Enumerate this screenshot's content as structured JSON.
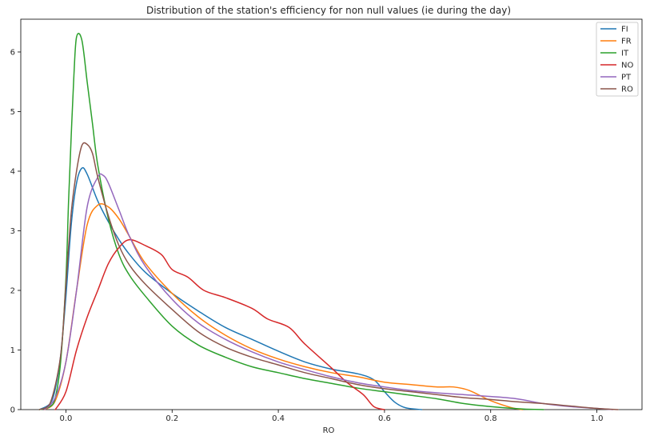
{
  "chart_data": {
    "type": "line",
    "title": "Distribution of the station's efficiency for non null values (ie during the day)",
    "xlabel": "RO",
    "ylabel": "",
    "xlim": [
      -0.085,
      1.085
    ],
    "ylim": [
      0,
      6.55
    ],
    "xticks": [
      0.0,
      0.2,
      0.4,
      0.6,
      0.8,
      1.0
    ],
    "xtick_labels": [
      "0.0",
      "0.2",
      "0.4",
      "0.6",
      "0.8",
      "1.0"
    ],
    "yticks": [
      0,
      1,
      2,
      3,
      4,
      5,
      6
    ],
    "ytick_labels": [
      "0",
      "1",
      "2",
      "3",
      "4",
      "5",
      "6"
    ],
    "grid": false,
    "legend_position": "top-right",
    "series": [
      {
        "name": "FI",
        "color": "#1f77b4",
        "points": [
          [
            -0.05,
            0
          ],
          [
            -0.03,
            0.1
          ],
          [
            -0.02,
            0.35
          ],
          [
            -0.01,
            0.9
          ],
          [
            0.0,
            1.9
          ],
          [
            0.01,
            3.1
          ],
          [
            0.02,
            3.8
          ],
          [
            0.03,
            4.05
          ],
          [
            0.04,
            3.95
          ],
          [
            0.06,
            3.5
          ],
          [
            0.08,
            3.15
          ],
          [
            0.1,
            2.85
          ],
          [
            0.12,
            2.6
          ],
          [
            0.15,
            2.3
          ],
          [
            0.2,
            1.95
          ],
          [
            0.25,
            1.65
          ],
          [
            0.3,
            1.38
          ],
          [
            0.35,
            1.18
          ],
          [
            0.4,
            0.98
          ],
          [
            0.45,
            0.8
          ],
          [
            0.5,
            0.68
          ],
          [
            0.55,
            0.6
          ],
          [
            0.58,
            0.5
          ],
          [
            0.6,
            0.3
          ],
          [
            0.62,
            0.12
          ],
          [
            0.64,
            0.03
          ],
          [
            0.67,
            0
          ]
        ]
      },
      {
        "name": "FR",
        "color": "#ff7f0e",
        "points": [
          [
            -0.04,
            0
          ],
          [
            -0.02,
            0.15
          ],
          [
            0.0,
            0.8
          ],
          [
            0.02,
            2.0
          ],
          [
            0.04,
            3.1
          ],
          [
            0.06,
            3.43
          ],
          [
            0.08,
            3.4
          ],
          [
            0.1,
            3.2
          ],
          [
            0.12,
            2.9
          ],
          [
            0.15,
            2.45
          ],
          [
            0.2,
            1.95
          ],
          [
            0.25,
            1.55
          ],
          [
            0.3,
            1.25
          ],
          [
            0.35,
            1.02
          ],
          [
            0.4,
            0.85
          ],
          [
            0.45,
            0.72
          ],
          [
            0.5,
            0.62
          ],
          [
            0.55,
            0.55
          ],
          [
            0.6,
            0.46
          ],
          [
            0.65,
            0.42
          ],
          [
            0.7,
            0.38
          ],
          [
            0.73,
            0.38
          ],
          [
            0.76,
            0.32
          ],
          [
            0.8,
            0.15
          ],
          [
            0.84,
            0.03
          ],
          [
            0.86,
            0
          ]
        ]
      },
      {
        "name": "IT",
        "color": "#2ca02c",
        "points": [
          [
            -0.05,
            0
          ],
          [
            -0.03,
            0.05
          ],
          [
            -0.02,
            0.2
          ],
          [
            -0.01,
            0.8
          ],
          [
            0.0,
            2.2
          ],
          [
            0.005,
            3.5
          ],
          [
            0.01,
            4.6
          ],
          [
            0.015,
            5.6
          ],
          [
            0.02,
            6.25
          ],
          [
            0.03,
            6.2
          ],
          [
            0.04,
            5.5
          ],
          [
            0.05,
            4.8
          ],
          [
            0.06,
            4.1
          ],
          [
            0.08,
            3.2
          ],
          [
            0.1,
            2.6
          ],
          [
            0.12,
            2.25
          ],
          [
            0.15,
            1.9
          ],
          [
            0.2,
            1.4
          ],
          [
            0.25,
            1.08
          ],
          [
            0.3,
            0.88
          ],
          [
            0.35,
            0.72
          ],
          [
            0.4,
            0.62
          ],
          [
            0.45,
            0.52
          ],
          [
            0.5,
            0.44
          ],
          [
            0.55,
            0.36
          ],
          [
            0.6,
            0.3
          ],
          [
            0.65,
            0.24
          ],
          [
            0.7,
            0.18
          ],
          [
            0.75,
            0.1
          ],
          [
            0.8,
            0.05
          ],
          [
            0.86,
            0.01
          ],
          [
            0.9,
            0
          ]
        ]
      },
      {
        "name": "NO",
        "color": "#d62728",
        "points": [
          [
            -0.02,
            0
          ],
          [
            0.0,
            0.3
          ],
          [
            0.02,
            1.0
          ],
          [
            0.04,
            1.55
          ],
          [
            0.06,
            2.0
          ],
          [
            0.08,
            2.45
          ],
          [
            0.1,
            2.72
          ],
          [
            0.12,
            2.85
          ],
          [
            0.15,
            2.75
          ],
          [
            0.18,
            2.6
          ],
          [
            0.2,
            2.35
          ],
          [
            0.23,
            2.22
          ],
          [
            0.26,
            2.0
          ],
          [
            0.3,
            1.88
          ],
          [
            0.35,
            1.7
          ],
          [
            0.38,
            1.52
          ],
          [
            0.42,
            1.38
          ],
          [
            0.45,
            1.1
          ],
          [
            0.5,
            0.7
          ],
          [
            0.53,
            0.45
          ],
          [
            0.56,
            0.25
          ],
          [
            0.58,
            0.05
          ],
          [
            0.6,
            0
          ]
        ]
      },
      {
        "name": "PT",
        "color": "#9467bd",
        "points": [
          [
            -0.04,
            0
          ],
          [
            -0.02,
            0.2
          ],
          [
            0.0,
            0.8
          ],
          [
            0.02,
            2.0
          ],
          [
            0.04,
            3.4
          ],
          [
            0.06,
            3.9
          ],
          [
            0.07,
            3.93
          ],
          [
            0.08,
            3.8
          ],
          [
            0.1,
            3.35
          ],
          [
            0.12,
            2.9
          ],
          [
            0.15,
            2.4
          ],
          [
            0.2,
            1.85
          ],
          [
            0.25,
            1.45
          ],
          [
            0.3,
            1.18
          ],
          [
            0.35,
            0.97
          ],
          [
            0.4,
            0.8
          ],
          [
            0.45,
            0.67
          ],
          [
            0.5,
            0.55
          ],
          [
            0.55,
            0.45
          ],
          [
            0.6,
            0.38
          ],
          [
            0.65,
            0.32
          ],
          [
            0.7,
            0.28
          ],
          [
            0.75,
            0.25
          ],
          [
            0.8,
            0.22
          ],
          [
            0.85,
            0.18
          ],
          [
            0.9,
            0.1
          ],
          [
            0.95,
            0.05
          ],
          [
            1.0,
            0.02
          ],
          [
            1.03,
            0
          ]
        ]
      },
      {
        "name": "RO",
        "color": "#8c564b",
        "points": [
          [
            -0.05,
            0
          ],
          [
            -0.03,
            0.1
          ],
          [
            -0.01,
            0.9
          ],
          [
            0.0,
            2.1
          ],
          [
            0.01,
            3.3
          ],
          [
            0.02,
            4.0
          ],
          [
            0.03,
            4.43
          ],
          [
            0.04,
            4.45
          ],
          [
            0.05,
            4.3
          ],
          [
            0.06,
            3.9
          ],
          [
            0.08,
            3.25
          ],
          [
            0.1,
            2.75
          ],
          [
            0.12,
            2.42
          ],
          [
            0.15,
            2.1
          ],
          [
            0.2,
            1.68
          ],
          [
            0.25,
            1.3
          ],
          [
            0.3,
            1.05
          ],
          [
            0.35,
            0.88
          ],
          [
            0.4,
            0.75
          ],
          [
            0.45,
            0.62
          ],
          [
            0.5,
            0.52
          ],
          [
            0.55,
            0.42
          ],
          [
            0.6,
            0.35
          ],
          [
            0.65,
            0.3
          ],
          [
            0.7,
            0.25
          ],
          [
            0.75,
            0.2
          ],
          [
            0.8,
            0.17
          ],
          [
            0.85,
            0.13
          ],
          [
            0.9,
            0.1
          ],
          [
            0.95,
            0.06
          ],
          [
            1.0,
            0.02
          ],
          [
            1.04,
            0
          ]
        ]
      }
    ]
  }
}
